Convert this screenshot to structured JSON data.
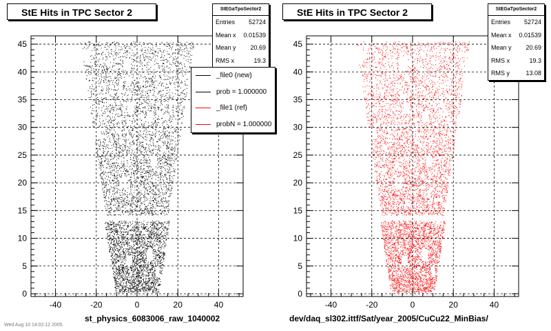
{
  "colors": {
    "new": "#000000",
    "ref": "#ff0000"
  },
  "chart_data": [
    {
      "type": "scatter",
      "title": "StE Hits in TPC Sector 2",
      "xlabel": "st_physics_6083006_raw_1040002",
      "ylabel": "",
      "xlim": [
        -52,
        52
      ],
      "ylim": [
        -0.5,
        46.5
      ],
      "xticks": [
        -40,
        -20,
        0,
        20,
        40
      ],
      "yticks": [
        0,
        5,
        10,
        15,
        20,
        25,
        30,
        35,
        40,
        45
      ],
      "grid": true,
      "series": [
        {
          "name": "_file0 (new)",
          "color": "#000000",
          "stats": {
            "entries": 52724,
            "mean_x": 0.01539,
            "mean_y": 20.69,
            "rms_x": 19.3
          }
        }
      ],
      "stats": {
        "name": "StEGaTpoSector2",
        "rows": [
          {
            "label": "Entries",
            "value": "52724"
          },
          {
            "label": "Mean x",
            "value": "0.01539"
          },
          {
            "label": "Mean y",
            "value": "20.69"
          },
          {
            "label": "RMS x",
            "value": "19.3"
          }
        ]
      },
      "legend": {
        "position": "upper-right-overlapping-plot",
        "entries": [
          {
            "label": "_file0 (new)",
            "color": "#000000"
          },
          {
            "label": "prob = 1.000000",
            "color": "#000000"
          },
          {
            "label": "_file1 (ref)",
            "color": "#ff0000"
          },
          {
            "label": "probN = 1.000000",
            "color": "#ff0000"
          }
        ]
      }
    },
    {
      "type": "scatter",
      "title": "StE Hits in TPC Sector 2",
      "xlabel": "dev/daq_sl302.ittf/Sat/year_2005/CuCu22_MinBias/",
      "ylabel": "",
      "xlim": [
        -52,
        52
      ],
      "ylim": [
        -0.5,
        46.5
      ],
      "xticks": [
        -40,
        -20,
        0,
        20,
        40
      ],
      "yticks": [
        0,
        5,
        10,
        15,
        20,
        25,
        30,
        35,
        40,
        45
      ],
      "grid": true,
      "series": [
        {
          "name": "_file1 (ref)",
          "color": "#ff0000",
          "stats": {
            "entries": 52724,
            "mean_x": 0.01539,
            "mean_y": 20.69,
            "rms_x": 19.3,
            "rms_y": 13.08
          }
        }
      ],
      "stats": {
        "name": "StEGaTpoSector2",
        "rows": [
          {
            "label": "Entries",
            "value": "52724"
          },
          {
            "label": "Mean x",
            "value": "0.01539"
          },
          {
            "label": "Mean y",
            "value": "20.69"
          },
          {
            "label": "RMS x",
            "value": "19.3"
          },
          {
            "label": "RMS y",
            "value": "13.08"
          }
        ]
      }
    }
  ],
  "footnote": "Wed Aug 10 14:02:12 2005"
}
